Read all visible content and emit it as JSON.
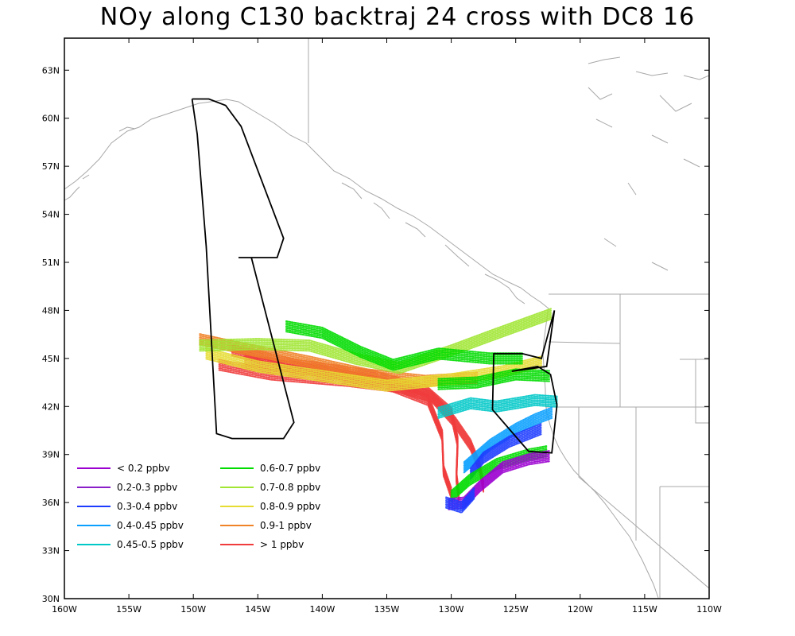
{
  "title": "NOy along C130 backtraj 24 cross with DC8 16",
  "map": {
    "lon_range": [
      -160,
      -110
    ],
    "lat_range": [
      30,
      65
    ],
    "lat_ticks": [
      {
        "value": 33,
        "label": "33N"
      },
      {
        "value": 36,
        "label": "36N"
      },
      {
        "value": 39,
        "label": "39N"
      },
      {
        "value": 42,
        "label": "42N"
      },
      {
        "value": 45,
        "label": "45N"
      },
      {
        "value": 48,
        "label": "48N"
      },
      {
        "value": 51,
        "label": "51N"
      },
      {
        "value": 54,
        "label": "54N"
      },
      {
        "value": 57,
        "label": "57N"
      },
      {
        "value": 60,
        "label": "60N"
      },
      {
        "value": 63,
        "label": "63N"
      },
      {
        "value": 30,
        "label": "30N"
      }
    ],
    "lon_ticks": [
      {
        "value": -160,
        "label": "160W"
      },
      {
        "value": -155,
        "label": "155W"
      },
      {
        "value": -150,
        "label": "150W"
      },
      {
        "value": -145,
        "label": "145W"
      },
      {
        "value": -140,
        "label": "140W"
      },
      {
        "value": -135,
        "label": "135W"
      },
      {
        "value": -130,
        "label": "130W"
      },
      {
        "value": -125,
        "label": "125W"
      },
      {
        "value": -120,
        "label": "120W"
      },
      {
        "value": -115,
        "label": "115W"
      },
      {
        "value": -110,
        "label": "110W"
      }
    ],
    "coast_color": "#a8a8a8",
    "flight_color": "#000000"
  },
  "legend": {
    "items": [
      {
        "label": "< 0.2 ppbv",
        "color": "#9b00d0"
      },
      {
        "label": "0.2-0.3 ppbv",
        "color": "#8a1ec8"
      },
      {
        "label": "0.3-0.4 ppbv",
        "color": "#1e3cff"
      },
      {
        "label": "0.4-0.45 ppbv",
        "color": "#0aa0ff"
      },
      {
        "label": "0.45-0.5 ppbv",
        "color": "#00c8c8"
      },
      {
        "label": "0.6-0.7 ppbv",
        "color": "#00dc00"
      },
      {
        "label": "0.7-0.8 ppbv",
        "color": "#a0e632"
      },
      {
        "label": "0.8-0.9 ppbv",
        "color": "#e6dc32"
      },
      {
        "label": "0.9-1 ppbv",
        "color": "#f08228"
      },
      {
        "label": "> 1 ppbv",
        "color": "#f03c3c"
      }
    ]
  },
  "flight_track": [
    [
      -150.1,
      61.2
    ],
    [
      -149.7,
      59.0
    ],
    [
      -149.0,
      52.0
    ],
    [
      -148.2,
      40.3
    ],
    [
      -147.0,
      40.0
    ],
    [
      -143.0,
      40.0
    ],
    [
      -142.2,
      41.0
    ],
    [
      -145.5,
      51.3
    ],
    [
      -146.5,
      51.3
    ],
    [
      -143.5,
      51.3
    ],
    [
      -143.0,
      52.5
    ],
    [
      -146.3,
      59.5
    ],
    [
      -147.5,
      60.8
    ],
    [
      -148.8,
      61.2
    ],
    [
      -150.1,
      61.2
    ]
  ],
  "flight_track_east": [
    [
      -122.0,
      48.0
    ],
    [
      -123.0,
      45.0
    ],
    [
      -124.5,
      45.3
    ],
    [
      -126.7,
      45.3
    ],
    [
      -126.8,
      41.8
    ],
    [
      -124.0,
      39.2
    ],
    [
      -122.2,
      39.1
    ],
    [
      -121.8,
      42.1
    ],
    [
      -122.3,
      44.0
    ],
    [
      -123.3,
      44.5
    ],
    [
      -125.3,
      44.2
    ],
    [
      -122.6,
      44.5
    ],
    [
      -122.0,
      48.0
    ]
  ],
  "trajectory_bands": [
    {
      "color": "#f03c3c",
      "points": [
        [
          -148.0,
          44.6
        ],
        [
          -144.0,
          44.0
        ],
        [
          -138.0,
          43.6
        ],
        [
          -134.0,
          43.2
        ],
        [
          -131.5,
          42.6
        ],
        [
          -129.7,
          41.0
        ],
        [
          -128.5,
          39.6
        ],
        [
          -127.8,
          38.2
        ],
        [
          -127.5,
          37.0
        ]
      ]
    },
    {
      "color": "#f03c3c",
      "points": [
        [
          -147.0,
          45.5
        ],
        [
          -142.0,
          44.6
        ],
        [
          -136.0,
          43.9
        ],
        [
          -132.0,
          43.0
        ],
        [
          -130.0,
          41.6
        ],
        [
          -129.5,
          39.8
        ],
        [
          -129.6,
          37.6
        ],
        [
          -129.4,
          36.3
        ]
      ]
    },
    {
      "color": "#f03c3c",
      "points": [
        [
          -146.0,
          44.9
        ],
        [
          -140.0,
          44.2
        ],
        [
          -135.0,
          43.4
        ],
        [
          -131.8,
          42.4
        ],
        [
          -130.7,
          40.2
        ],
        [
          -130.6,
          38.0
        ],
        [
          -130.0,
          36.6
        ]
      ]
    },
    {
      "color": "#f08228",
      "points": [
        [
          -149.5,
          46.2
        ],
        [
          -146.0,
          45.6
        ],
        [
          -141.0,
          44.8
        ],
        [
          -136.5,
          44.0
        ],
        [
          -132.0,
          43.6
        ],
        [
          -128.0,
          43.8
        ]
      ]
    },
    {
      "color": "#e6dc32",
      "points": [
        [
          -149.0,
          45.3
        ],
        [
          -145.0,
          44.5
        ],
        [
          -140.0,
          43.9
        ],
        [
          -135.0,
          43.3
        ],
        [
          -130.0,
          43.7
        ],
        [
          -126.0,
          44.2
        ],
        [
          -123.0,
          44.8
        ]
      ]
    },
    {
      "color": "#a0e632",
      "points": [
        [
          -149.5,
          45.8
        ],
        [
          -145.0,
          45.9
        ],
        [
          -141.0,
          45.8
        ],
        [
          -137.5,
          45.0
        ],
        [
          -134.0,
          44.4
        ],
        [
          -130.0,
          45.5
        ],
        [
          -127.0,
          46.4
        ],
        [
          -122.2,
          47.8
        ]
      ]
    },
    {
      "color": "#00dc00",
      "points": [
        [
          -142.8,
          47.0
        ],
        [
          -140.0,
          46.6
        ],
        [
          -137.0,
          45.4
        ],
        [
          -134.5,
          44.6
        ],
        [
          -131.0,
          45.3
        ],
        [
          -127.0,
          45.0
        ],
        [
          -124.5,
          45.0
        ]
      ]
    },
    {
      "color": "#00dc00",
      "points": [
        [
          -131.0,
          43.4
        ],
        [
          -128.0,
          43.5
        ],
        [
          -125.0,
          44.0
        ],
        [
          -122.4,
          43.9
        ]
      ]
    },
    {
      "color": "#00c8c8",
      "points": [
        [
          -131.0,
          41.6
        ],
        [
          -128.5,
          42.2
        ],
        [
          -126.5,
          42.0
        ],
        [
          -123.5,
          42.4
        ],
        [
          -121.8,
          42.3
        ]
      ]
    },
    {
      "color": "#0aa0ff",
      "points": [
        [
          -129.0,
          38.2
        ],
        [
          -127.0,
          39.6
        ],
        [
          -125.0,
          40.6
        ],
        [
          -123.5,
          41.2
        ],
        [
          -122.2,
          41.6
        ]
      ]
    },
    {
      "color": "#1e3cff",
      "points": [
        [
          -128.5,
          37.8
        ],
        [
          -127.5,
          38.8
        ],
        [
          -125.5,
          39.8
        ],
        [
          -123.0,
          40.6
        ]
      ]
    },
    {
      "color": "#00dc00",
      "points": [
        [
          -130.0,
          36.4
        ],
        [
          -128.6,
          37.4
        ],
        [
          -126.5,
          38.4
        ],
        [
          -124.0,
          39.0
        ],
        [
          -122.6,
          39.2
        ]
      ]
    },
    {
      "color": "#9b00d0",
      "points": [
        [
          -130.2,
          35.9
        ],
        [
          -129.0,
          36.0
        ],
        [
          -127.8,
          37.0
        ],
        [
          -126.0,
          38.2
        ],
        [
          -124.0,
          38.7
        ],
        [
          -122.4,
          38.9
        ]
      ]
    },
    {
      "color": "#1e3cff",
      "points": [
        [
          -130.4,
          36.0
        ],
        [
          -129.2,
          35.7
        ],
        [
          -128.2,
          36.6
        ]
      ]
    }
  ]
}
